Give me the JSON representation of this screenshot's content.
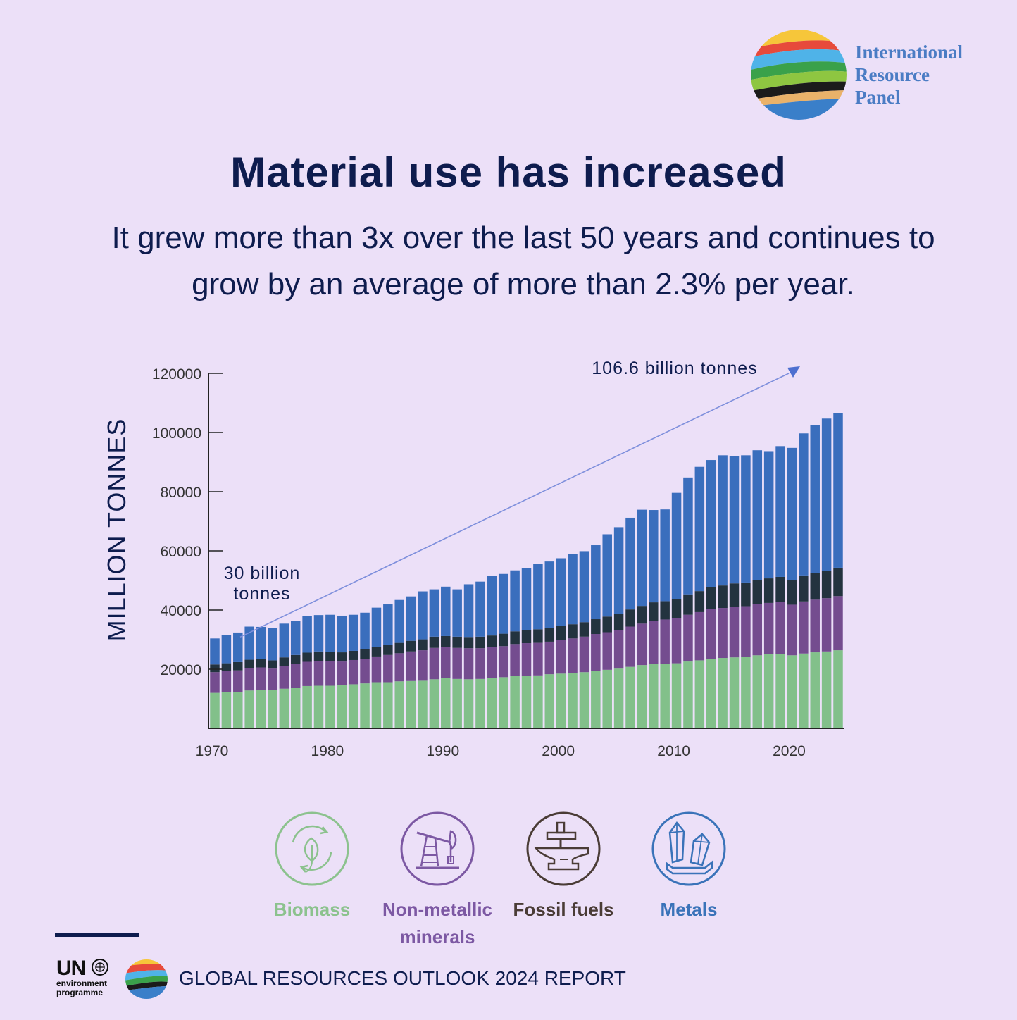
{
  "header": {
    "logo_lines": [
      "International",
      "Resource",
      "Panel"
    ]
  },
  "title": "Material use has increased",
  "subtitle_lines": [
    "It grew more than 3x over the last 50 years and continues to",
    "grow by an average of more than 2.3% per year."
  ],
  "chart_data": {
    "type": "bar",
    "stacked": true,
    "ylabel": "MILLION TONNES",
    "ylim": [
      0,
      120000
    ],
    "yticks": [
      20000,
      40000,
      60000,
      80000,
      100000,
      120000
    ],
    "xticks": [
      1970,
      1980,
      1990,
      2000,
      2010,
      2020
    ],
    "categories": [
      1970,
      1971,
      1972,
      1973,
      1974,
      1975,
      1976,
      1977,
      1978,
      1979,
      1980,
      1981,
      1982,
      1983,
      1984,
      1985,
      1986,
      1987,
      1988,
      1989,
      1990,
      1991,
      1992,
      1993,
      1994,
      1995,
      1996,
      1997,
      1998,
      1999,
      2000,
      2001,
      2002,
      2003,
      2004,
      2005,
      2006,
      2007,
      2008,
      2009,
      2010,
      2011,
      2012,
      2013,
      2014,
      2015,
      2016,
      2017,
      2018,
      2019,
      2020,
      2021,
      2022,
      2023,
      2024
    ],
    "series": [
      {
        "name": "Biomass",
        "color": "#82c08a",
        "values": [
          12000,
          12200,
          12300,
          12800,
          13000,
          13000,
          13400,
          13800,
          14300,
          14400,
          14400,
          14600,
          14900,
          15200,
          15600,
          15600,
          15900,
          16000,
          16100,
          16600,
          16900,
          16700,
          16600,
          16700,
          16900,
          17300,
          17700,
          17800,
          17900,
          18300,
          18500,
          18700,
          19000,
          19400,
          19800,
          20200,
          20800,
          21400,
          21700,
          21700,
          22000,
          22600,
          23000,
          23500,
          23800,
          24000,
          24200,
          24700,
          25000,
          25200,
          24700,
          25300,
          25700,
          26000,
          26400
        ]
      },
      {
        "name": "Non-metallic minerals",
        "color": "#744c8f",
        "values": [
          7000,
          7100,
          7300,
          7500,
          7600,
          7200,
          7700,
          8000,
          8200,
          8400,
          8300,
          8000,
          8200,
          8300,
          8700,
          9200,
          9500,
          10000,
          10300,
          10600,
          10500,
          10500,
          10500,
          10400,
          10500,
          10500,
          10800,
          11000,
          11000,
          11000,
          11500,
          11700,
          12000,
          12500,
          12700,
          13100,
          13600,
          14000,
          14700,
          15100,
          15300,
          15800,
          16300,
          16800,
          16900,
          17000,
          17100,
          17300,
          17400,
          17500,
          17100,
          17600,
          17800,
          18000,
          18300
        ]
      },
      {
        "name": "Fossil fuels",
        "color": "#23333f",
        "values": [
          2600,
          2700,
          2800,
          2900,
          2900,
          2800,
          2900,
          3000,
          3100,
          3200,
          3200,
          3100,
          3100,
          3200,
          3300,
          3400,
          3500,
          3600,
          3700,
          3800,
          3800,
          3800,
          3800,
          3900,
          4000,
          4200,
          4300,
          4500,
          4600,
          4600,
          4700,
          4800,
          4900,
          5000,
          5300,
          5500,
          5800,
          6000,
          6200,
          6200,
          6300,
          6900,
          7100,
          7400,
          7600,
          8000,
          8000,
          8200,
          8300,
          8500,
          8300,
          8800,
          9000,
          9200,
          9600
        ]
      },
      {
        "name": "Metals",
        "color": "#3a6ebd",
        "values": [
          8800,
          9600,
          10000,
          11200,
          10800,
          10900,
          11400,
          11600,
          12400,
          12300,
          12500,
          12400,
          12200,
          12400,
          13200,
          13700,
          14500,
          15000,
          16200,
          16000,
          16700,
          16000,
          17800,
          18600,
          20200,
          20200,
          20600,
          20900,
          22200,
          22500,
          22800,
          23700,
          24000,
          25000,
          27800,
          29200,
          31000,
          32500,
          31200,
          31000,
          36000,
          39500,
          42000,
          43000,
          44000,
          43000,
          43000,
          43800,
          43000,
          44200,
          44700,
          48000,
          50000,
          51500,
          52200
        ]
      }
    ],
    "annotations": [
      "30 billion tonnes",
      "106.6 billion tonnes"
    ]
  },
  "legend": [
    {
      "label_lines": [
        "Biomass"
      ],
      "color": "#8cc28e",
      "icon": "leaf-cycle-icon"
    },
    {
      "label_lines": [
        "Non-metallic",
        "minerals"
      ],
      "color": "#7c58a3",
      "icon": "pump-jack-icon"
    },
    {
      "label_lines": [
        "Fossil fuels"
      ],
      "color": "#4a3c36",
      "icon": "anvil-icon"
    },
    {
      "label_lines": [
        "Metals"
      ],
      "color": "#3a73b9",
      "icon": "crystals-icon"
    }
  ],
  "footer": {
    "un_word": "UN",
    "un_sub_lines": [
      "environment",
      "programme"
    ],
    "report": "GLOBAL RESOURCES OUTLOOK 2024 REPORT"
  }
}
